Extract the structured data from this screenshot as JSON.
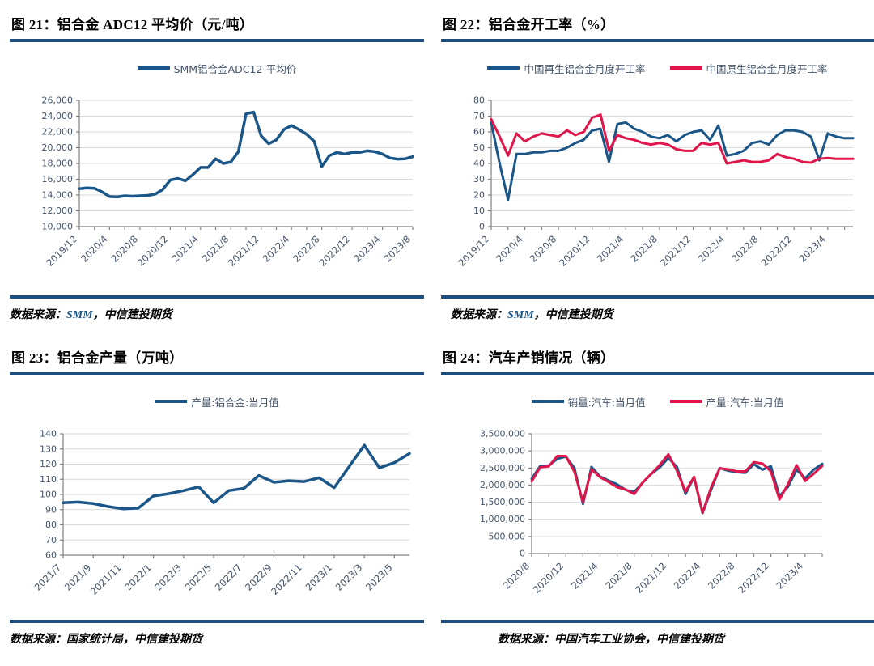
{
  "colors": {
    "line_blue": "#1b5688",
    "line_red": "#e0164b",
    "rule_blue": "#1c4f80",
    "grid_gray": "#d9d9d9",
    "axis_gray": "#808080",
    "tick_text": "#44546a"
  },
  "charts": [
    {
      "figure_label": "图 21：铝合金 ADC12 平均价（元/吨）",
      "source": {
        "prefix": "数据来源：",
        "highlight": "SMM",
        "suffix": "，中信建投期货"
      },
      "legend": [
        {
          "label": "SMM铝合金ADC12-平均价",
          "color": "#1b5688"
        }
      ],
      "chart_data": {
        "type": "line",
        "title": "铝合金 ADC12 平均价（元/吨）",
        "grid": "horizontal",
        "legend_position": "top-center",
        "ylim": [
          10000,
          26000
        ],
        "ytick_labels": [
          "10,000",
          "12,000",
          "14,000",
          "16,000",
          "18,000",
          "20,000",
          "22,000",
          "24,000",
          "26,000"
        ],
        "xtick_label_every": 4,
        "xtick_minor_every": 2,
        "x": [
          "2019/12",
          "2020/1",
          "2020/2",
          "2020/3",
          "2020/4",
          "2020/5",
          "2020/6",
          "2020/7",
          "2020/8",
          "2020/9",
          "2020/10",
          "2020/11",
          "2020/12",
          "2021/1",
          "2021/2",
          "2021/3",
          "2021/4",
          "2021/5",
          "2021/6",
          "2021/7",
          "2021/8",
          "2021/9",
          "2021/10",
          "2021/11",
          "2021/12",
          "2022/1",
          "2022/2",
          "2022/3",
          "2022/4",
          "2022/5",
          "2022/6",
          "2022/7",
          "2022/8",
          "2022/9",
          "2022/10",
          "2022/11",
          "2022/12",
          "2023/1",
          "2023/2",
          "2023/3",
          "2023/4",
          "2023/5",
          "2023/6",
          "2023/7",
          "2023/8"
        ],
        "series": [
          {
            "name": "SMM铝合金ADC12-平均价",
            "color": "#1b5688",
            "values": [
              14800,
              14900,
              14850,
              14400,
              13800,
              13750,
              13900,
              13850,
              13900,
              13950,
              14100,
              14700,
              15900,
              16100,
              15800,
              16600,
              17500,
              17500,
              18600,
              18000,
              18200,
              19500,
              24300,
              24500,
              21500,
              20500,
              21000,
              22300,
              22800,
              22300,
              21700,
              20800,
              17600,
              19000,
              19400,
              19200,
              19400,
              19400,
              19600,
              19500,
              19200,
              18700,
              18550,
              18600,
              18850
            ]
          }
        ]
      }
    },
    {
      "figure_label": "图 22：铝合金开工率（%）",
      "source": {
        "prefix": "数据来源：",
        "highlight": "SMM",
        "suffix": "，中信建投期货"
      },
      "legend": [
        {
          "label": "中国再生铝合金月度开工率",
          "color": "#1b5688"
        },
        {
          "label": "中国原生铝合金月度开工率",
          "color": "#e0164b"
        }
      ],
      "chart_data": {
        "type": "line",
        "title": "铝合金开工率（%）",
        "grid": "horizontal",
        "legend_position": "top-center",
        "ylim": [
          0,
          80
        ],
        "ytick_labels": [
          "0",
          "10",
          "20",
          "30",
          "40",
          "50",
          "60",
          "70",
          "80"
        ],
        "xtick_label_every": 4,
        "xtick_minor_every": 2,
        "x": [
          "2019/12",
          "2020/1",
          "2020/2",
          "2020/3",
          "2020/4",
          "2020/5",
          "2020/6",
          "2020/7",
          "2020/8",
          "2020/9",
          "2020/10",
          "2020/11",
          "2020/12",
          "2021/1",
          "2021/2",
          "2021/3",
          "2021/4",
          "2021/5",
          "2021/6",
          "2021/7",
          "2021/8",
          "2021/9",
          "2021/10",
          "2021/11",
          "2021/12",
          "2022/1",
          "2022/2",
          "2022/3",
          "2022/4",
          "2022/5",
          "2022/6",
          "2022/7",
          "2022/8",
          "2022/9",
          "2022/10",
          "2022/11",
          "2022/12",
          "2023/1",
          "2023/2",
          "2023/3",
          "2023/4",
          "2023/5",
          "2023/6",
          "2023/7"
        ],
        "series": [
          {
            "name": "中国再生铝合金月度开工率",
            "color": "#1b5688",
            "values": [
              66,
              40,
              17,
              46,
              46,
              47,
              47,
              48,
              48,
              50,
              53,
              55,
              61,
              62,
              41,
              65,
              66,
              62,
              60,
              57,
              56,
              58,
              54,
              58,
              60,
              61,
              55,
              64,
              45,
              46,
              48,
              53,
              54,
              52,
              58,
              61,
              61,
              60,
              57,
              42,
              59,
              57,
              56,
              56
            ]
          },
          {
            "name": "中国原生铝合金月度开工率",
            "color": "#e0164b",
            "values": [
              68,
              57,
              45,
              59,
              54,
              57,
              59,
              58,
              57,
              61,
              58,
              60,
              69,
              71,
              48,
              58,
              56,
              55,
              53,
              52,
              53,
              52,
              49,
              48,
              48,
              53,
              52,
              53,
              40,
              41,
              42,
              41,
              41,
              42,
              46,
              44,
              43,
              41,
              40.5,
              43,
              43.5,
              43,
              43,
              43
            ]
          }
        ]
      }
    },
    {
      "figure_label": "图 23：铝合金产量（万吨）",
      "source": {
        "prefix": "数据来源：",
        "highlight": "",
        "suffix": "国家统计局，中信建投期货"
      },
      "legend": [
        {
          "label": "产量:铝合金:当月值",
          "color": "#1b5688"
        }
      ],
      "chart_data": {
        "type": "line",
        "title": "铝合金产量（万吨）",
        "grid": "horizontal",
        "legend_position": "top-center",
        "ylim": [
          60,
          140
        ],
        "ytick_labels": [
          "60",
          "70",
          "80",
          "90",
          "100",
          "110",
          "120",
          "130",
          "140"
        ],
        "xtick_label_every": 2,
        "xtick_minor_every": 2,
        "x": [
          "2021/7",
          "2021/8",
          "2021/9",
          "2021/10",
          "2021/11",
          "2021/12",
          "2022/1",
          "2022/2",
          "2022/3",
          "2022/4",
          "2022/5",
          "2022/6",
          "2022/7",
          "2022/8",
          "2022/9",
          "2022/10",
          "2022/11",
          "2022/12",
          "2023/1",
          "2023/2",
          "2023/3",
          "2023/4",
          "2023/5",
          "2023/6"
        ],
        "series": [
          {
            "name": "产量:铝合金:当月值",
            "color": "#1b5688",
            "values": [
              94.5,
              95,
              94,
              92,
              90.5,
              91,
              99,
              100.5,
              102.5,
              105,
              94.5,
              102.5,
              104,
              112.5,
              108,
              109,
              108.5,
              111,
              104.5,
              118.5,
              132.5,
              117.5,
              121,
              127
            ]
          }
        ]
      }
    },
    {
      "figure_label": "图 24：汽车产销情况（辆）",
      "source": {
        "prefix": "数据来源：",
        "highlight": "",
        "suffix": "中国汽车工业协会，中信建投期货"
      },
      "legend": [
        {
          "label": "销量:汽车:当月值",
          "color": "#1b5688"
        },
        {
          "label": "产量:汽车:当月值",
          "color": "#e0164b"
        }
      ],
      "chart_data": {
        "type": "line",
        "title": "汽车产销情况（辆）",
        "grid": "horizontal",
        "legend_position": "top-center",
        "ylim": [
          0,
          3500000
        ],
        "ytick_labels": [
          "0",
          "500,000",
          "1,000,000",
          "1,500,000",
          "2,000,000",
          "2,500,000",
          "3,000,000",
          "3,500,000"
        ],
        "xtick_label_every": 4,
        "xtick_minor_every": 2,
        "x": [
          "2020/8",
          "2020/9",
          "2020/10",
          "2020/11",
          "2020/12",
          "2021/1",
          "2021/2",
          "2021/3",
          "2021/4",
          "2021/5",
          "2021/6",
          "2021/7",
          "2021/8",
          "2021/9",
          "2021/10",
          "2021/11",
          "2021/12",
          "2022/1",
          "2022/2",
          "2022/3",
          "2022/4",
          "2022/5",
          "2022/6",
          "2022/7",
          "2022/8",
          "2022/9",
          "2022/10",
          "2022/11",
          "2022/12",
          "2023/1",
          "2023/2",
          "2023/3",
          "2023/4",
          "2023/5",
          "2023/6"
        ],
        "series": [
          {
            "name": "销量:汽车:当月值",
            "color": "#1b5688",
            "values": [
              2180000,
              2560000,
              2570000,
              2770000,
              2830000,
              2500000,
              1450000,
              2530000,
              2250000,
              2130000,
              2020000,
              1860000,
              1800000,
              2070000,
              2330000,
              2520000,
              2790000,
              2530000,
              1740000,
              2230000,
              1180000,
              1860000,
              2500000,
              2420000,
              2380000,
              2360000,
              2610000,
              2450000,
              2550000,
              1680000,
              1950000,
              2450000,
              2200000,
              2450000,
              2620000
            ]
          },
          {
            "name": "产量:汽车:当月值",
            "color": "#e0164b",
            "values": [
              2110000,
              2520000,
              2550000,
              2850000,
              2850000,
              2390000,
              1500000,
              2460000,
              2230000,
              2090000,
              1940000,
              1870000,
              1740000,
              2080000,
              2330000,
              2590000,
              2900000,
              2420000,
              1810000,
              2240000,
              1200000,
              1930000,
              2490000,
              2460000,
              2400000,
              2400000,
              2670000,
              2630000,
              2400000,
              1580000,
              2030000,
              2580000,
              2120000,
              2330000,
              2560000
            ]
          }
        ]
      }
    }
  ]
}
